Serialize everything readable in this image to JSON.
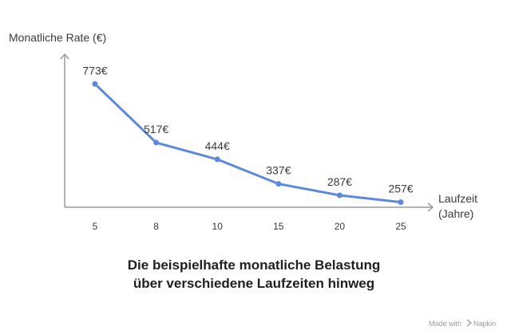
{
  "chart_data": {
    "type": "line",
    "x": [
      5,
      8,
      10,
      15,
      20,
      25
    ],
    "tick_labels": [
      "5",
      "8",
      "10",
      "15",
      "20",
      "25"
    ],
    "values": [
      773,
      517,
      444,
      337,
      287,
      257
    ],
    "data_labels": [
      "773€",
      "517€",
      "444€",
      "337€",
      "287€",
      "257€"
    ],
    "ylabel": "Monatliche Rate (€)",
    "xlabel_line1": "Laufzeit",
    "xlabel_line2": "(Jahre)",
    "ylim": [
      0,
      900
    ],
    "grid": false,
    "colors": {
      "line": "#5b8ad9",
      "axis": "#9a9a9a",
      "text": "#3a3a3a"
    }
  },
  "caption": {
    "line1": "Die beispielhafte monatliche Belastung",
    "line2": "über verschiedene Laufzeiten hinweg"
  },
  "watermark": {
    "text": "Made with",
    "brand": "Napkin",
    "icon": "napkin-logo-icon"
  }
}
